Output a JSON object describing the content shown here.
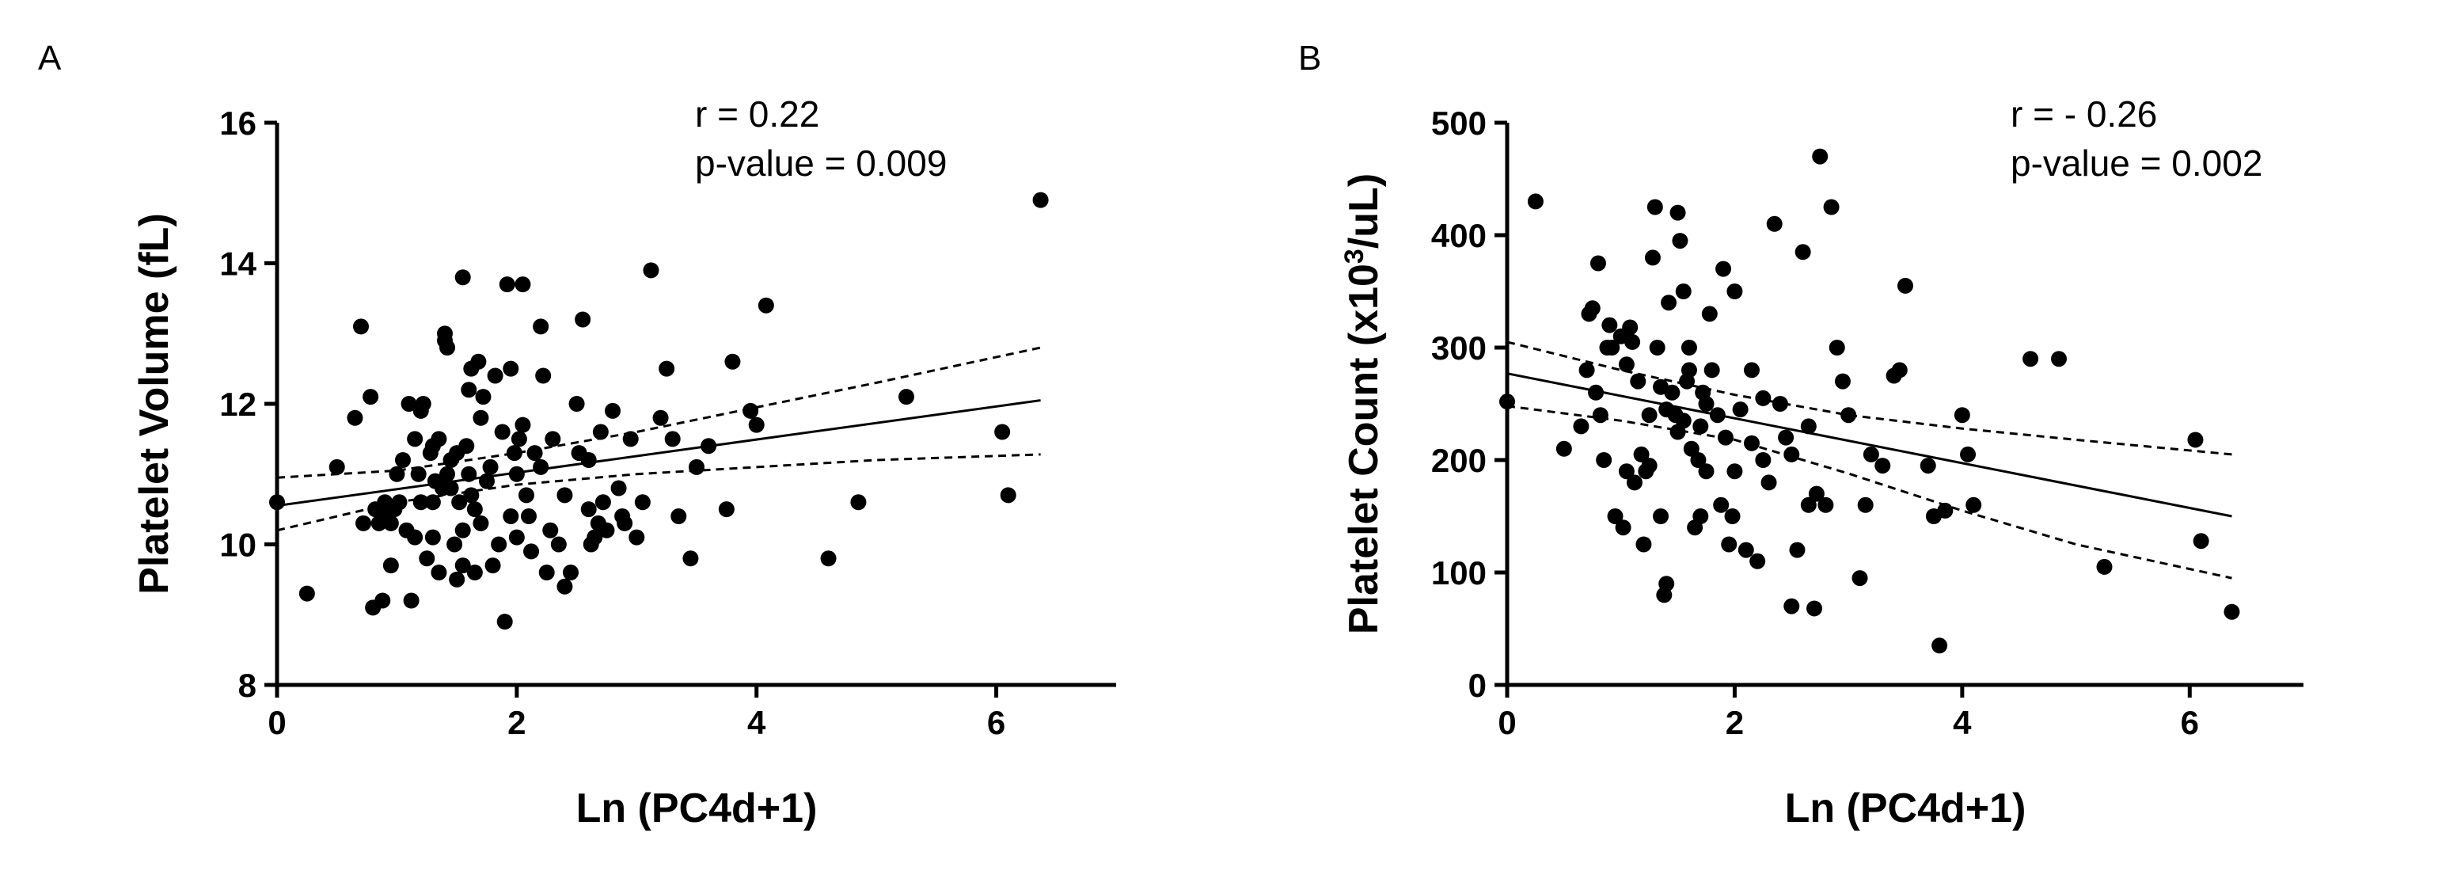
{
  "chart_data": [
    {
      "type": "scatter",
      "panel_label": "A",
      "xlabel": "Ln (PC4d+1)",
      "ylabel": "Platelet Volume  (fL)",
      "xlim": [
        0,
        7
      ],
      "ylim": [
        8,
        16
      ],
      "xticks": [
        0,
        2,
        4,
        6
      ],
      "yticks": [
        8,
        10,
        12,
        14,
        16
      ],
      "annotations": [
        "r = 0.22",
        "p-value = 0.009"
      ],
      "fit": {
        "x": [
          0,
          6.37
        ],
        "y": [
          10.55,
          12.05
        ]
      },
      "ci_upper": {
        "x": [
          0,
          1,
          2,
          3,
          4,
          5,
          6.37
        ],
        "y": [
          10.95,
          11.05,
          11.3,
          11.6,
          11.95,
          12.3,
          12.8
        ]
      },
      "ci_lower": {
        "x": [
          0,
          1,
          2,
          3,
          4,
          5,
          6.37
        ],
        "y": [
          10.2,
          10.6,
          10.85,
          11.0,
          11.1,
          11.2,
          11.28
        ]
      },
      "points": [
        [
          0.0,
          10.6
        ],
        [
          0.25,
          9.3
        ],
        [
          0.5,
          11.1
        ],
        [
          0.65,
          11.8
        ],
        [
          0.7,
          13.1
        ],
        [
          0.72,
          10.3
        ],
        [
          0.78,
          12.1
        ],
        [
          0.8,
          9.1
        ],
        [
          0.82,
          10.5
        ],
        [
          0.85,
          10.3
        ],
        [
          0.88,
          9.2
        ],
        [
          0.9,
          10.6
        ],
        [
          0.92,
          10.4
        ],
        [
          0.95,
          10.3
        ],
        [
          0.95,
          9.7
        ],
        [
          1.0,
          11.0
        ],
        [
          1.02,
          10.6
        ],
        [
          1.05,
          11.2
        ],
        [
          1.08,
          10.2
        ],
        [
          1.1,
          12.0
        ],
        [
          1.12,
          9.2
        ],
        [
          1.15,
          11.5
        ],
        [
          1.18,
          11.0
        ],
        [
          1.2,
          10.6
        ],
        [
          1.2,
          11.9
        ],
        [
          1.22,
          12.0
        ],
        [
          1.25,
          9.8
        ],
        [
          1.28,
          11.3
        ],
        [
          1.3,
          10.1
        ],
        [
          1.3,
          11.4
        ],
        [
          1.32,
          10.9
        ],
        [
          1.35,
          9.6
        ],
        [
          1.35,
          11.5
        ],
        [
          1.38,
          10.8
        ],
        [
          1.4,
          12.9
        ],
        [
          1.4,
          13.0
        ],
        [
          1.42,
          12.8
        ],
        [
          1.42,
          11.0
        ],
        [
          1.45,
          11.2
        ],
        [
          1.48,
          10.0
        ],
        [
          1.5,
          11.3
        ],
        [
          1.5,
          9.5
        ],
        [
          1.52,
          10.6
        ],
        [
          1.55,
          13.8
        ],
        [
          1.55,
          9.7
        ],
        [
          1.55,
          10.2
        ],
        [
          1.58,
          11.4
        ],
        [
          1.6,
          12.2
        ],
        [
          1.6,
          11.0
        ],
        [
          1.62,
          10.7
        ],
        [
          1.62,
          12.5
        ],
        [
          1.65,
          10.5
        ],
        [
          1.65,
          9.6
        ],
        [
          1.68,
          12.6
        ],
        [
          1.7,
          11.8
        ],
        [
          1.72,
          12.1
        ],
        [
          1.75,
          10.9
        ],
        [
          1.78,
          11.1
        ],
        [
          1.8,
          9.7
        ],
        [
          1.82,
          12.4
        ],
        [
          1.85,
          10.0
        ],
        [
          1.88,
          11.6
        ],
        [
          1.9,
          8.9
        ],
        [
          1.92,
          13.7
        ],
        [
          1.95,
          12.5
        ],
        [
          1.95,
          10.4
        ],
        [
          1.98,
          11.3
        ],
        [
          2.0,
          10.1
        ],
        [
          2.02,
          11.5
        ],
        [
          2.05,
          13.7
        ],
        [
          2.05,
          11.7
        ],
        [
          2.08,
          10.7
        ],
        [
          2.1,
          10.4
        ],
        [
          2.12,
          9.9
        ],
        [
          2.15,
          11.3
        ],
        [
          2.2,
          13.1
        ],
        [
          2.22,
          12.4
        ],
        [
          2.25,
          9.6
        ],
        [
          2.28,
          10.2
        ],
        [
          2.3,
          11.5
        ],
        [
          2.35,
          10.0
        ],
        [
          2.4,
          9.4
        ],
        [
          2.45,
          9.6
        ],
        [
          2.5,
          12.0
        ],
        [
          2.52,
          11.3
        ],
        [
          2.55,
          13.2
        ],
        [
          2.6,
          11.2
        ],
        [
          2.62,
          10.0
        ],
        [
          2.65,
          10.1
        ],
        [
          2.68,
          10.3
        ],
        [
          2.7,
          11.6
        ],
        [
          2.72,
          10.6
        ],
        [
          2.75,
          10.2
        ],
        [
          2.8,
          11.9
        ],
        [
          2.85,
          10.8
        ],
        [
          2.88,
          10.4
        ],
        [
          2.9,
          10.3
        ],
        [
          2.95,
          11.5
        ],
        [
          3.0,
          10.1
        ],
        [
          3.05,
          10.6
        ],
        [
          3.12,
          13.9
        ],
        [
          3.2,
          11.8
        ],
        [
          3.25,
          12.5
        ],
        [
          3.3,
          11.5
        ],
        [
          3.35,
          10.4
        ],
        [
          3.45,
          9.8
        ],
        [
          3.5,
          11.1
        ],
        [
          3.6,
          11.4
        ],
        [
          3.75,
          10.5
        ],
        [
          3.8,
          12.6
        ],
        [
          3.95,
          11.9
        ],
        [
          4.0,
          11.7
        ],
        [
          4.08,
          13.4
        ],
        [
          4.6,
          9.8
        ],
        [
          4.85,
          10.6
        ],
        [
          5.25,
          12.1
        ],
        [
          6.05,
          11.6
        ],
        [
          6.1,
          10.7
        ],
        [
          6.37,
          14.9
        ],
        [
          1.3,
          10.6
        ],
        [
          1.15,
          10.1
        ],
        [
          0.98,
          10.5
        ],
        [
          1.7,
          10.3
        ],
        [
          2.0,
          11.0
        ],
        [
          2.4,
          10.7
        ],
        [
          2.6,
          10.5
        ],
        [
          1.45,
          10.8
        ],
        [
          2.2,
          11.1
        ]
      ]
    },
    {
      "type": "scatter",
      "panel_label": "B",
      "xlabel": "Ln (PC4d+1)",
      "ylabel_parts": [
        "Platelet Count (x10",
        "3",
        "/uL)"
      ],
      "xlim": [
        0,
        7
      ],
      "ylim": [
        0,
        500
      ],
      "xticks": [
        0,
        2,
        4,
        6
      ],
      "yticks": [
        0,
        100,
        200,
        300,
        400,
        500
      ],
      "annotations": [
        "r = - 0.26",
        "p-value = 0.002"
      ],
      "fit": {
        "x": [
          0,
          6.37
        ],
        "y": [
          277,
          150
        ]
      },
      "ci_upper": {
        "x": [
          0,
          1,
          2,
          3,
          4,
          5,
          6.37
        ],
        "y": [
          305,
          280,
          258,
          240,
          228,
          218,
          205
        ]
      },
      "ci_lower": {
        "x": [
          0,
          1,
          2,
          3,
          4,
          5,
          6.37
        ],
        "y": [
          248,
          235,
          218,
          188,
          155,
          125,
          95
        ]
      },
      "points": [
        [
          0.0,
          252
        ],
        [
          0.25,
          430
        ],
        [
          0.5,
          210
        ],
        [
          0.65,
          230
        ],
        [
          0.7,
          280
        ],
        [
          0.72,
          330
        ],
        [
          0.75,
          335
        ],
        [
          0.78,
          260
        ],
        [
          0.8,
          375
        ],
        [
          0.82,
          240
        ],
        [
          0.85,
          200
        ],
        [
          0.88,
          300
        ],
        [
          0.9,
          320
        ],
        [
          0.95,
          150
        ],
        [
          1.0,
          310
        ],
        [
          1.02,
          140
        ],
        [
          1.05,
          190
        ],
        [
          1.08,
          318
        ],
        [
          1.1,
          305
        ],
        [
          1.12,
          180
        ],
        [
          1.15,
          270
        ],
        [
          1.18,
          205
        ],
        [
          1.2,
          125
        ],
        [
          1.22,
          190
        ],
        [
          1.25,
          240
        ],
        [
          1.28,
          380
        ],
        [
          1.3,
          425
        ],
        [
          1.32,
          300
        ],
        [
          1.35,
          150
        ],
        [
          1.38,
          80
        ],
        [
          1.4,
          90
        ],
        [
          1.42,
          340
        ],
        [
          1.45,
          260
        ],
        [
          1.48,
          240
        ],
        [
          1.5,
          420
        ],
        [
          1.52,
          395
        ],
        [
          1.55,
          350
        ],
        [
          1.58,
          270
        ],
        [
          1.6,
          300
        ],
        [
          1.62,
          210
        ],
        [
          1.65,
          140
        ],
        [
          1.68,
          200
        ],
        [
          1.7,
          230
        ],
        [
          1.72,
          260
        ],
        [
          1.75,
          190
        ],
        [
          1.78,
          330
        ],
        [
          1.8,
          280
        ],
        [
          1.85,
          240
        ],
        [
          1.88,
          160
        ],
        [
          1.9,
          370
        ],
        [
          1.92,
          220
        ],
        [
          1.95,
          125
        ],
        [
          1.98,
          150
        ],
        [
          2.0,
          350
        ],
        [
          2.05,
          245
        ],
        [
          2.1,
          120
        ],
        [
          2.15,
          280
        ],
        [
          2.2,
          110
        ],
        [
          2.25,
          200
        ],
        [
          2.3,
          180
        ],
        [
          2.35,
          410
        ],
        [
          2.4,
          250
        ],
        [
          2.45,
          220
        ],
        [
          2.5,
          70
        ],
        [
          2.55,
          120
        ],
        [
          2.6,
          385
        ],
        [
          2.65,
          230
        ],
        [
          2.7,
          68
        ],
        [
          2.72,
          170
        ],
        [
          2.75,
          470
        ],
        [
          2.8,
          160
        ],
        [
          2.85,
          425
        ],
        [
          2.9,
          300
        ],
        [
          2.95,
          270
        ],
        [
          3.0,
          240
        ],
        [
          3.1,
          95
        ],
        [
          3.15,
          160
        ],
        [
          3.2,
          205
        ],
        [
          3.3,
          195
        ],
        [
          3.4,
          275
        ],
        [
          3.45,
          280
        ],
        [
          3.5,
          355
        ],
        [
          3.7,
          195
        ],
        [
          3.75,
          150
        ],
        [
          3.8,
          35
        ],
        [
          3.85,
          155
        ],
        [
          4.0,
          240
        ],
        [
          4.05,
          205
        ],
        [
          4.1,
          160
        ],
        [
          4.6,
          290
        ],
        [
          4.85,
          290
        ],
        [
          5.25,
          105
        ],
        [
          6.05,
          218
        ],
        [
          6.1,
          128
        ],
        [
          6.37,
          65
        ],
        [
          1.35,
          265
        ],
        [
          1.5,
          225
        ],
        [
          1.6,
          280
        ],
        [
          1.75,
          250
        ],
        [
          2.0,
          190
        ],
        [
          2.15,
          215
        ],
        [
          1.25,
          195
        ],
        [
          1.05,
          285
        ],
        [
          0.92,
          300
        ],
        [
          1.4,
          245
        ],
        [
          1.55,
          235
        ],
        [
          1.7,
          150
        ],
        [
          2.25,
          255
        ],
        [
          2.5,
          205
        ],
        [
          2.65,
          160
        ]
      ]
    }
  ]
}
